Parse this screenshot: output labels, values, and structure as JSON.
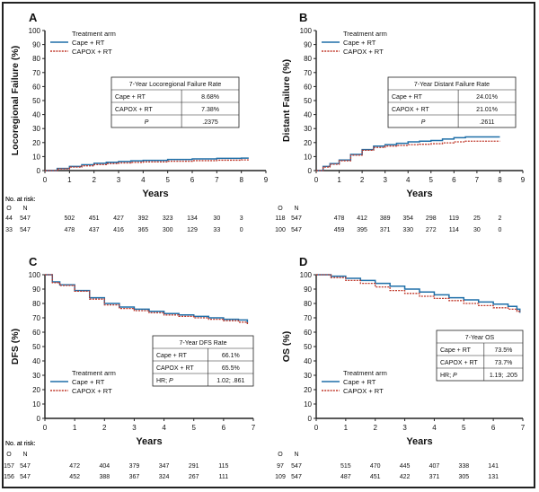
{
  "colors": {
    "cape": "#1f6fa8",
    "capox": "#c0392b",
    "axis": "#222222"
  },
  "legend_title": "Treatment arm",
  "risk_label": "No. at risk:",
  "risk_header": [
    "O",
    "N"
  ],
  "chart_data": [
    {
      "type": "line",
      "panel_label": "A",
      "ylabel": "Locoregional Failure (%)",
      "xlabel": "Years",
      "xlim": [
        0,
        9
      ],
      "ylim": [
        0,
        100
      ],
      "xticks": [
        0,
        1,
        2,
        3,
        4,
        5,
        6,
        7,
        8,
        9
      ],
      "yticks": [
        0,
        10,
        20,
        30,
        40,
        50,
        60,
        70,
        80,
        90,
        100
      ],
      "legend": {
        "title": "Treatment arm",
        "entries": [
          "Cape + RT",
          "CAPOX + RT"
        ]
      },
      "table": {
        "title": "7-Year Locoregional Failure Rate",
        "rows": [
          [
            "Cape + RT",
            "8.68%"
          ],
          [
            "CAPOX + RT",
            "7.38%"
          ],
          [
            "P",
            ".2375"
          ]
        ]
      },
      "series": [
        {
          "name": "Cape + RT",
          "x": [
            0,
            0.5,
            1,
            1.5,
            2,
            2.5,
            3,
            3.5,
            4,
            5,
            6,
            7,
            8,
            8.3
          ],
          "y": [
            0,
            1.5,
            3,
            4.2,
            5.2,
            5.9,
            6.5,
            7,
            7.3,
            7.9,
            8.3,
            8.7,
            8.9,
            8.9
          ]
        },
        {
          "name": "CAPOX + RT",
          "x": [
            0,
            0.5,
            1,
            1.5,
            2,
            2.5,
            3,
            3.5,
            4,
            5,
            6,
            7,
            8,
            8.3
          ],
          "y": [
            0,
            1.2,
            2.5,
            3.4,
            4.3,
            5,
            5.5,
            5.9,
            6.2,
            6.7,
            7.1,
            7.4,
            7.6,
            7.6
          ]
        }
      ],
      "risk": {
        "cape": [
          "44",
          "547",
          "502",
          "451",
          "427",
          "392",
          "323",
          "134",
          "30",
          "3"
        ],
        "capox": [
          "33",
          "547",
          "478",
          "437",
          "416",
          "365",
          "300",
          "129",
          "33",
          "0"
        ]
      }
    },
    {
      "type": "line",
      "panel_label": "B",
      "ylabel": "Distant Failure (%)",
      "xlabel": "Years",
      "xlim": [
        0,
        9
      ],
      "ylim": [
        0,
        100
      ],
      "xticks": [
        0,
        1,
        2,
        3,
        4,
        5,
        6,
        7,
        8,
        9
      ],
      "yticks": [
        0,
        10,
        20,
        30,
        40,
        50,
        60,
        70,
        80,
        90,
        100
      ],
      "legend": {
        "title": "Treatment arm",
        "entries": [
          "Cape + RT",
          "CAPOX + RT"
        ]
      },
      "table": {
        "title": "7-Year Distant Failure Rate",
        "rows": [
          [
            "Cape + RT",
            "24.01%"
          ],
          [
            "CAPOX + RT",
            "21.01%"
          ],
          [
            "P",
            ".2611"
          ]
        ]
      },
      "series": [
        {
          "name": "Cape + RT",
          "x": [
            0,
            0.3,
            0.6,
            1,
            1.5,
            2,
            2.5,
            3,
            3.5,
            4,
            4.5,
            5,
            5.5,
            6,
            6.5,
            7,
            7.5,
            8
          ],
          "y": [
            0,
            3,
            5,
            7.5,
            11.5,
            15,
            17.5,
            18.5,
            19.5,
            20.5,
            21,
            21.5,
            22.5,
            23.5,
            24,
            24,
            24,
            24
          ]
        },
        {
          "name": "CAPOX + RT",
          "x": [
            0,
            0.3,
            0.6,
            1,
            1.5,
            2,
            2.5,
            3,
            3.5,
            4,
            4.5,
            5,
            5.5,
            6,
            6.5,
            7,
            7.5,
            8
          ],
          "y": [
            0,
            2.5,
            4.5,
            7,
            11,
            14.5,
            16.5,
            17.5,
            18,
            18.5,
            18.8,
            19.2,
            19.8,
            20.5,
            21,
            21,
            21,
            21
          ]
        }
      ],
      "risk": {
        "cape": [
          "118",
          "547",
          "478",
          "412",
          "389",
          "354",
          "298",
          "119",
          "25",
          "2"
        ],
        "capox": [
          "100",
          "547",
          "459",
          "395",
          "371",
          "330",
          "272",
          "114",
          "30",
          "0"
        ]
      }
    },
    {
      "type": "line",
      "panel_label": "C",
      "ylabel": "DFS (%)",
      "xlabel": "Years",
      "xlim": [
        0,
        7
      ],
      "ylim": [
        0,
        100
      ],
      "xticks": [
        0,
        1,
        2,
        3,
        4,
        5,
        6,
        7
      ],
      "yticks": [
        0,
        10,
        20,
        30,
        40,
        50,
        60,
        70,
        80,
        90,
        100
      ],
      "legend": {
        "title": "Treatment arm",
        "entries": [
          "Cape + RT",
          "CAPOX + RT"
        ]
      },
      "table": {
        "title": "7-Year DFS Rate",
        "rows": [
          [
            "Cape + RT",
            "66.1%"
          ],
          [
            "CAPOX + RT",
            "65.5%"
          ],
          [
            "HR; P",
            "1.02; .861"
          ]
        ]
      },
      "series": [
        {
          "name": "Cape + RT",
          "x": [
            0,
            0.25,
            0.5,
            1,
            1.5,
            2,
            2.5,
            3,
            3.5,
            4,
            4.5,
            5,
            5.5,
            6,
            6.5,
            6.8
          ],
          "y": [
            100,
            95,
            93,
            89,
            84,
            80,
            77.5,
            76,
            74.5,
            73,
            72,
            71,
            70,
            69,
            68.5,
            66
          ]
        },
        {
          "name": "CAPOX + RT",
          "x": [
            0,
            0.25,
            0.5,
            1,
            1.5,
            2,
            2.5,
            3,
            3.5,
            4,
            4.5,
            5,
            5.5,
            6,
            6.5,
            6.8
          ],
          "y": [
            100,
            94.5,
            92.5,
            88.5,
            83,
            79,
            76.5,
            75,
            73.5,
            72,
            71,
            70,
            69,
            68,
            67,
            65.5
          ]
        }
      ],
      "risk": {
        "cape": [
          "157",
          "547",
          "472",
          "404",
          "379",
          "347",
          "291",
          "115"
        ],
        "capox": [
          "156",
          "547",
          "452",
          "388",
          "367",
          "324",
          "267",
          "111"
        ]
      }
    },
    {
      "type": "line",
      "panel_label": "D",
      "ylabel": "OS (%)",
      "xlabel": "Years",
      "xlim": [
        0,
        7
      ],
      "ylim": [
        0,
        100
      ],
      "xticks": [
        0,
        1,
        2,
        3,
        4,
        5,
        6,
        7
      ],
      "yticks": [
        0,
        10,
        20,
        30,
        40,
        50,
        60,
        70,
        80,
        90,
        100
      ],
      "legend": {
        "title": "Treatment arm",
        "entries": [
          "Cape + RT",
          "CAPOX + RT"
        ]
      },
      "table": {
        "title": "7-Year OS",
        "rows": [
          [
            "Cape + RT",
            "73.5%"
          ],
          [
            "CAPOX + RT",
            "73.7%"
          ],
          [
            "HR; P",
            "1.19; .205"
          ]
        ]
      },
      "series": [
        {
          "name": "Cape + RT",
          "x": [
            0,
            0.5,
            1,
            1.5,
            2,
            2.5,
            3,
            3.5,
            4,
            4.5,
            5,
            5.5,
            6,
            6.5,
            6.8,
            6.9
          ],
          "y": [
            100,
            99,
            97.5,
            96,
            94,
            92,
            90,
            88,
            86,
            84,
            82.5,
            81,
            79.5,
            78,
            76,
            73.5
          ]
        },
        {
          "name": "CAPOX + RT",
          "x": [
            0,
            0.5,
            1,
            1.5,
            2,
            2.5,
            3,
            3.5,
            4,
            4.5,
            5,
            5.5,
            6,
            6.5,
            6.8,
            6.9
          ],
          "y": [
            100,
            98,
            96,
            94,
            91.5,
            89,
            87,
            85,
            83.5,
            82,
            80,
            78.5,
            77,
            76,
            74.5,
            73.7
          ]
        }
      ],
      "risk": {
        "cape": [
          "97",
          "547",
          "515",
          "470",
          "445",
          "407",
          "338",
          "141"
        ],
        "capox": [
          "109",
          "547",
          "487",
          "451",
          "422",
          "371",
          "305",
          "131"
        ]
      }
    }
  ]
}
